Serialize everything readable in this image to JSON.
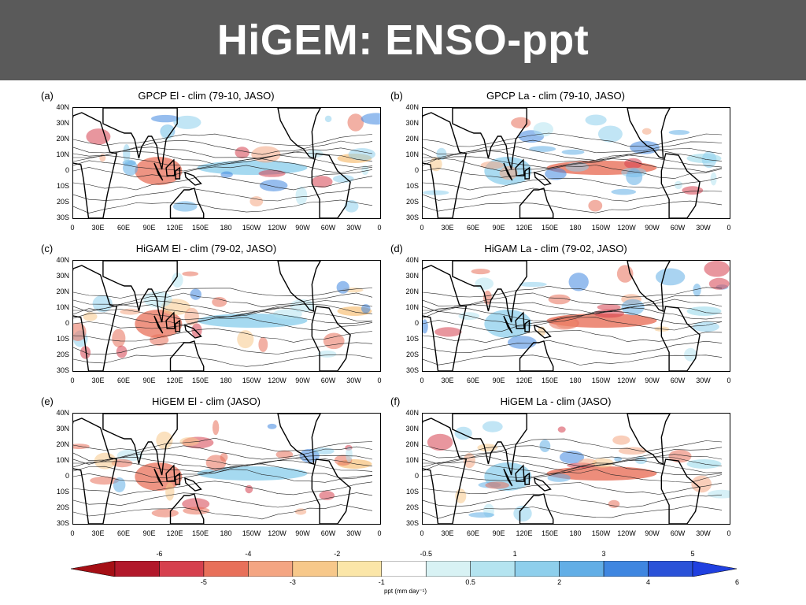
{
  "header": {
    "title": "HiGEM: ENSO-ppt"
  },
  "panels": [
    {
      "label": "(a)",
      "title": "GPCP El - clim (79-10, JASO)"
    },
    {
      "label": "(b)",
      "title": "GPCP La - clim (79-10, JASO)"
    },
    {
      "label": "(c)",
      "title": "HiGAM El - clim (79-02, JASO)"
    },
    {
      "label": "(d)",
      "title": "HiGAM La - clim (79-02, JASO)"
    },
    {
      "label": "(e)",
      "title": "HiGEM El - clim (JASO)"
    },
    {
      "label": "(f)",
      "title": "HiGEM La - clim (JASO)"
    }
  ],
  "axes": {
    "lat_ticks": [
      "40N",
      "30N",
      "20N",
      "10N",
      "0",
      "10S",
      "20S",
      "30S"
    ],
    "lon_ticks": [
      "0",
      "30E",
      "60E",
      "90E",
      "120E",
      "150E",
      "180",
      "150W",
      "120W",
      "90W",
      "60W",
      "30W",
      "0"
    ]
  },
  "colorbar": {
    "top_labels": [
      "-6",
      "-4",
      "-2",
      "-0.5",
      "1",
      "3",
      "5"
    ],
    "bottom_labels": [
      "-5",
      "-3",
      "-1",
      "0.5",
      "2",
      "4",
      "6"
    ],
    "units": "ppt (mm day⁻¹)",
    "colors": [
      "#b2182b",
      "#d6404e",
      "#e8705a",
      "#f4a582",
      "#f7c88a",
      "#fbe6a8",
      "#ffffff",
      "#d8f2f4",
      "#b4e4f0",
      "#8ecfec",
      "#62aee6",
      "#3f86e0",
      "#2a52d8"
    ],
    "min_arrow_color": "#a50f15",
    "max_arrow_color": "#2040e0"
  }
}
